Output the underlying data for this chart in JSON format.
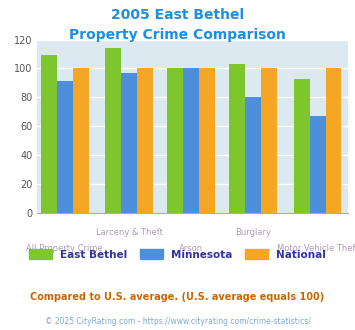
{
  "title_line1": "2005 East Bethel",
  "title_line2": "Property Crime Comparison",
  "title_color": "#1c8fe0",
  "east_bethel": [
    109,
    114,
    100,
    103,
    93
  ],
  "minnesota": [
    91,
    97,
    100,
    80,
    67
  ],
  "national": [
    100,
    100,
    100,
    100,
    100
  ],
  "colors": {
    "east_bethel": "#7dc62e",
    "minnesota": "#4d8fdb",
    "national": "#f5a623"
  },
  "ylim": [
    0,
    120
  ],
  "yticks": [
    0,
    20,
    40,
    60,
    80,
    100,
    120
  ],
  "bg_color": "#dce9f0",
  "grid_color": "#ffffff",
  "upper_xlabel_color": "#b09ab5",
  "lower_xlabel_color": "#b09ab5",
  "legend_text_color": "#333399",
  "note_text": "Compared to U.S. average. (U.S. average equals 100)",
  "note_color": "#cc6600",
  "copyright_text": "© 2025 CityRating.com - https://www.cityrating.com/crime-statistics/",
  "copyright_color": "#7aadd4",
  "bar_width": 0.22,
  "positions": [
    0.33,
    1.22,
    2.08,
    2.94,
    3.83
  ]
}
